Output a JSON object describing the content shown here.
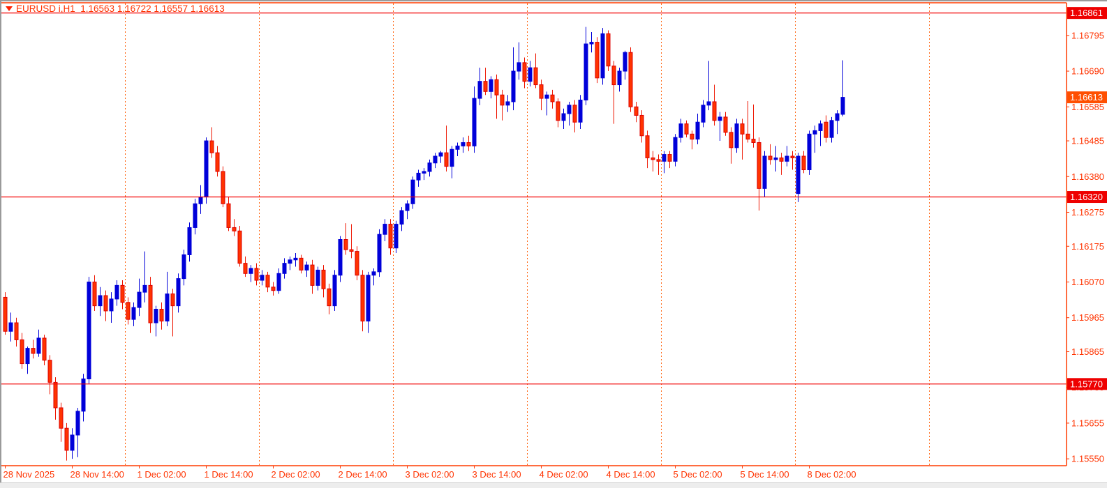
{
  "header": {
    "title_text": "EURUSD i,H1  1.16563 1.16722 1.16557 1.16613"
  },
  "chart_data": {
    "type": "candlestick",
    "symbol": "EURUSD i",
    "timeframe": "H1",
    "title": "EURUSD i,H1",
    "last_bar": {
      "open": 1.16563,
      "high": 1.16722,
      "low": 1.16557,
      "close": 1.16613
    },
    "bid_price": 1.16613,
    "bid_label": "1.16613",
    "ylim": [
      1.15535,
      1.16891
    ],
    "grid": false,
    "legend_position": "none",
    "colors": {
      "background": "#ffffff",
      "axis": "#ff3b00",
      "text": "#ff3300",
      "bull": "#0000d9",
      "bear_fill": "#ff3300",
      "bear_border": "#dd0000",
      "line": "#f20000",
      "line_label_bg": "#ee0000",
      "bid_label_bg": "#ff4f00",
      "separator": "#ff5a00"
    },
    "horizontal_lines": [
      {
        "price": 1.16861,
        "label": "1.16861"
      },
      {
        "price": 1.1632,
        "label": "1.16320"
      },
      {
        "price": 1.1577,
        "label": "1.15770"
      }
    ],
    "price_ticks": [
      {
        "price": 1.16795,
        "label": "1.16795"
      },
      {
        "price": 1.1669,
        "label": "1.16690"
      },
      {
        "price": 1.16585,
        "label": "1.16585"
      },
      {
        "price": 1.16485,
        "label": "1.16485"
      },
      {
        "price": 1.1638,
        "label": "1.16380"
      },
      {
        "price": 1.16275,
        "label": "1.16275"
      },
      {
        "price": 1.16175,
        "label": "1.16175"
      },
      {
        "price": 1.1607,
        "label": "1.16070"
      },
      {
        "price": 1.15965,
        "label": "1.15965"
      },
      {
        "price": 1.15865,
        "label": "1.15865"
      },
      {
        "price": 1.1576,
        "label": "1.15760"
      },
      {
        "price": 1.15655,
        "label": "1.15655"
      },
      {
        "price": 1.1555,
        "label": "1.15550"
      }
    ],
    "time_ticks": [
      {
        "bar": 0,
        "label": "28 Nov 2025"
      },
      {
        "bar": 12,
        "label": "28 Nov 14:00"
      },
      {
        "bar": 24,
        "label": "1 Dec 02:00"
      },
      {
        "bar": 36,
        "label": "1 Dec 14:00"
      },
      {
        "bar": 48,
        "label": "2 Dec 02:00"
      },
      {
        "bar": 60,
        "label": "2 Dec 14:00"
      },
      {
        "bar": 72,
        "label": "3 Dec 02:00"
      },
      {
        "bar": 84,
        "label": "3 Dec 14:00"
      },
      {
        "bar": 96,
        "label": "4 Dec 02:00"
      },
      {
        "bar": 108,
        "label": "4 Dec 14:00"
      },
      {
        "bar": 120,
        "label": "5 Dec 02:00"
      },
      {
        "bar": 132,
        "label": "5 Dec 14:00"
      },
      {
        "bar": 144,
        "label": "8 Dec 02:00"
      }
    ],
    "day_separator_bars": [
      22,
      46,
      70,
      94,
      118,
      142,
      166
    ],
    "candles": [
      [
        1.16025,
        1.1604,
        1.15915,
        1.15925
      ],
      [
        1.15925,
        1.1598,
        1.15895,
        1.1595
      ],
      [
        1.1595,
        1.15965,
        1.1588,
        1.159
      ],
      [
        1.159,
        1.1592,
        1.15815,
        1.1583
      ],
      [
        1.1583,
        1.1588,
        1.158,
        1.15875
      ],
      [
        1.15875,
        1.159,
        1.15845,
        1.1586
      ],
      [
        1.1586,
        1.1593,
        1.1585,
        1.15905
      ],
      [
        1.15905,
        1.15915,
        1.15825,
        1.1584
      ],
      [
        1.1584,
        1.15855,
        1.1574,
        1.15775
      ],
      [
        1.15775,
        1.1579,
        1.15665,
        1.157
      ],
      [
        1.157,
        1.15715,
        1.156,
        1.1564
      ],
      [
        1.1564,
        1.15655,
        1.15545,
        1.15575
      ],
      [
        1.15575,
        1.1564,
        1.1555,
        1.1562
      ],
      [
        1.1562,
        1.157,
        1.15555,
        1.1569
      ],
      [
        1.1569,
        1.158,
        1.1566,
        1.15785
      ],
      [
        1.15785,
        1.16085,
        1.1577,
        1.1607
      ],
      [
        1.1607,
        1.1609,
        1.15985,
        1.16
      ],
      [
        1.16,
        1.16055,
        1.1597,
        1.1603
      ],
      [
        1.1603,
        1.16045,
        1.15955,
        1.15985
      ],
      [
        1.15985,
        1.1604,
        1.1595,
        1.1602
      ],
      [
        1.1602,
        1.16075,
        1.16,
        1.1606
      ],
      [
        1.1606,
        1.16075,
        1.1599,
        1.1601
      ],
      [
        1.1601,
        1.16025,
        1.15945,
        1.1596
      ],
      [
        1.1596,
        1.1601,
        1.1594,
        1.15995
      ],
      [
        1.15995,
        1.1608,
        1.1597,
        1.1604
      ],
      [
        1.1604,
        1.1616,
        1.1601,
        1.1606
      ],
      [
        1.1606,
        1.16085,
        1.1592,
        1.1595
      ],
      [
        1.1595,
        1.16,
        1.1591,
        1.1599
      ],
      [
        1.1599,
        1.1601,
        1.1593,
        1.15955
      ],
      [
        1.15955,
        1.161,
        1.1594,
        1.16035
      ],
      [
        1.16035,
        1.1605,
        1.1591,
        1.16
      ],
      [
        1.16,
        1.16095,
        1.1598,
        1.1608
      ],
      [
        1.1608,
        1.16165,
        1.1606,
        1.1615
      ],
      [
        1.1615,
        1.16245,
        1.1613,
        1.1623
      ],
      [
        1.1623,
        1.16315,
        1.1621,
        1.163
      ],
      [
        1.163,
        1.16355,
        1.1627,
        1.1632
      ],
      [
        1.1632,
        1.16495,
        1.163,
        1.16485
      ],
      [
        1.16485,
        1.16525,
        1.16435,
        1.1645
      ],
      [
        1.1645,
        1.1647,
        1.1638,
        1.16395
      ],
      [
        1.16395,
        1.1641,
        1.1629,
        1.163
      ],
      [
        1.163,
        1.1632,
        1.1622,
        1.1623
      ],
      [
        1.1623,
        1.16255,
        1.16205,
        1.1622
      ],
      [
        1.1622,
        1.16235,
        1.16115,
        1.16125
      ],
      [
        1.16125,
        1.16145,
        1.16085,
        1.16095
      ],
      [
        1.16095,
        1.1612,
        1.1607,
        1.1611
      ],
      [
        1.1611,
        1.16125,
        1.1606,
        1.16075
      ],
      [
        1.16075,
        1.16105,
        1.1606,
        1.1609
      ],
      [
        1.1609,
        1.161,
        1.1604,
        1.16055
      ],
      [
        1.16055,
        1.1607,
        1.1603,
        1.16045
      ],
      [
        1.16045,
        1.1611,
        1.16035,
        1.16095
      ],
      [
        1.16095,
        1.1614,
        1.1608,
        1.16125
      ],
      [
        1.16125,
        1.16145,
        1.16105,
        1.16135
      ],
      [
        1.16135,
        1.16155,
        1.16115,
        1.1614
      ],
      [
        1.1614,
        1.1615,
        1.16095,
        1.16105
      ],
      [
        1.16105,
        1.1613,
        1.16085,
        1.1612
      ],
      [
        1.1612,
        1.16135,
        1.16035,
        1.1606
      ],
      [
        1.1606,
        1.16115,
        1.16045,
        1.16105
      ],
      [
        1.16105,
        1.1612,
        1.16025,
        1.1605
      ],
      [
        1.1605,
        1.16065,
        1.15975,
        1.16
      ],
      [
        1.16,
        1.16105,
        1.15985,
        1.1609
      ],
      [
        1.1609,
        1.16205,
        1.1607,
        1.16195
      ],
      [
        1.16195,
        1.16243,
        1.1615,
        1.16165
      ],
      [
        1.16165,
        1.1624,
        1.1614,
        1.1616
      ],
      [
        1.1616,
        1.16175,
        1.16075,
        1.1609
      ],
      [
        1.1609,
        1.16105,
        1.15925,
        1.15955
      ],
      [
        1.15955,
        1.161,
        1.1592,
        1.1609
      ],
      [
        1.1609,
        1.1611,
        1.1606,
        1.161
      ],
      [
        1.161,
        1.16225,
        1.16085,
        1.1621
      ],
      [
        1.1621,
        1.16255,
        1.1619,
        1.1624
      ],
      [
        1.1624,
        1.16255,
        1.1615,
        1.1617
      ],
      [
        1.1617,
        1.1625,
        1.16155,
        1.1624
      ],
      [
        1.1624,
        1.1629,
        1.1622,
        1.1628
      ],
      [
        1.1628,
        1.1631,
        1.16255,
        1.163
      ],
      [
        1.163,
        1.1638,
        1.16285,
        1.1637
      ],
      [
        1.1637,
        1.164,
        1.1635,
        1.1639
      ],
      [
        1.1639,
        1.16405,
        1.1637,
        1.16395
      ],
      [
        1.16395,
        1.1643,
        1.1638,
        1.1642
      ],
      [
        1.1642,
        1.1645,
        1.16405,
        1.1644
      ],
      [
        1.1644,
        1.16455,
        1.1642,
        1.1645
      ],
      [
        1.1645,
        1.1653,
        1.16395,
        1.1641
      ],
      [
        1.1641,
        1.1647,
        1.16375,
        1.1646
      ],
      [
        1.1646,
        1.1648,
        1.1644,
        1.1647
      ],
      [
        1.1647,
        1.16495,
        1.1645,
        1.1648
      ],
      [
        1.1648,
        1.165,
        1.16455,
        1.1647
      ],
      [
        1.1647,
        1.16645,
        1.1645,
        1.1661
      ],
      [
        1.1661,
        1.167,
        1.1659,
        1.1666
      ],
      [
        1.1666,
        1.167,
        1.1662,
        1.1663
      ],
      [
        1.1663,
        1.16675,
        1.1661,
        1.16665
      ],
      [
        1.16665,
        1.1668,
        1.1655,
        1.1662
      ],
      [
        1.1662,
        1.16635,
        1.16545,
        1.1659
      ],
      [
        1.1659,
        1.1662,
        1.1657,
        1.166
      ],
      [
        1.166,
        1.1676,
        1.16575,
        1.1669
      ],
      [
        1.1669,
        1.16775,
        1.16665,
        1.16715
      ],
      [
        1.16715,
        1.1673,
        1.1664,
        1.1666
      ],
      [
        1.1666,
        1.1672,
        1.16645,
        1.167
      ],
      [
        1.167,
        1.16742,
        1.1664,
        1.1665
      ],
      [
        1.1665,
        1.16665,
        1.16575,
        1.1661
      ],
      [
        1.1661,
        1.1663,
        1.1656,
        1.1662
      ],
      [
        1.1662,
        1.16635,
        1.1658,
        1.166
      ],
      [
        1.166,
        1.1661,
        1.16525,
        1.16545
      ],
      [
        1.16545,
        1.1658,
        1.1652,
        1.16565
      ],
      [
        1.16565,
        1.166,
        1.1653,
        1.1659
      ],
      [
        1.1659,
        1.16605,
        1.1651,
        1.1654
      ],
      [
        1.1654,
        1.1662,
        1.1652,
        1.16605
      ],
      [
        1.16605,
        1.1682,
        1.1659,
        1.1677
      ],
      [
        1.1677,
        1.16805,
        1.16745,
        1.16775
      ],
      [
        1.16775,
        1.1679,
        1.16655,
        1.1667
      ],
      [
        1.1667,
        1.16817,
        1.1665,
        1.168
      ],
      [
        1.168,
        1.1681,
        1.1669,
        1.16705
      ],
      [
        1.16705,
        1.1672,
        1.16535,
        1.1665
      ],
      [
        1.1665,
        1.167,
        1.1663,
        1.1669
      ],
      [
        1.1669,
        1.1675,
        1.16665,
        1.16745
      ],
      [
        1.16745,
        1.1676,
        1.1657,
        1.16585
      ],
      [
        1.16585,
        1.166,
        1.1654,
        1.1656
      ],
      [
        1.1656,
        1.16575,
        1.1648,
        1.165
      ],
      [
        1.165,
        1.16515,
        1.16405,
        1.16435
      ],
      [
        1.16435,
        1.16455,
        1.16395,
        1.1643
      ],
      [
        1.1643,
        1.16445,
        1.16385,
        1.16425
      ],
      [
        1.16425,
        1.16455,
        1.1639,
        1.16445
      ],
      [
        1.16445,
        1.16455,
        1.16405,
        1.16425
      ],
      [
        1.16425,
        1.16505,
        1.1641,
        1.16495
      ],
      [
        1.16495,
        1.1655,
        1.1648,
        1.16535
      ],
      [
        1.16535,
        1.16545,
        1.16495,
        1.16505
      ],
      [
        1.16505,
        1.16515,
        1.1646,
        1.1649
      ],
      [
        1.1649,
        1.16565,
        1.16475,
        1.1654
      ],
      [
        1.1654,
        1.16605,
        1.16525,
        1.1659
      ],
      [
        1.1659,
        1.1672,
        1.16575,
        1.166
      ],
      [
        1.166,
        1.1665,
        1.1653,
        1.16545
      ],
      [
        1.16545,
        1.1657,
        1.16485,
        1.16555
      ],
      [
        1.16555,
        1.1657,
        1.165,
        1.1651
      ],
      [
        1.1651,
        1.16525,
        1.16418,
        1.16465
      ],
      [
        1.16465,
        1.1655,
        1.1645,
        1.16535
      ],
      [
        1.16535,
        1.1655,
        1.1643,
        1.16505
      ],
      [
        1.16505,
        1.16602,
        1.1648,
        1.1649
      ],
      [
        1.1649,
        1.16592,
        1.16465,
        1.1648
      ],
      [
        1.1648,
        1.16495,
        1.1628,
        1.16345
      ],
      [
        1.16345,
        1.16455,
        1.1632,
        1.1644
      ],
      [
        1.1644,
        1.16475,
        1.16415,
        1.1643
      ],
      [
        1.1643,
        1.1647,
        1.16395,
        1.16435
      ],
      [
        1.16435,
        1.1645,
        1.16385,
        1.16425
      ],
      [
        1.16425,
        1.1647,
        1.1641,
        1.1644
      ],
      [
        1.1644,
        1.16455,
        1.164,
        1.16435
      ],
      [
        1.1633,
        1.1645,
        1.16305,
        1.1644
      ],
      [
        1.1644,
        1.16455,
        1.1639,
        1.164
      ],
      [
        1.164,
        1.16515,
        1.16385,
        1.16505
      ],
      [
        1.16505,
        1.1653,
        1.1645,
        1.16515
      ],
      [
        1.16515,
        1.16545,
        1.1647,
        1.16535
      ],
      [
        1.1654,
        1.1656,
        1.1648,
        1.16495
      ],
      [
        1.16495,
        1.16555,
        1.1648,
        1.16545
      ],
      [
        1.16545,
        1.16575,
        1.16505,
        1.16565
      ],
      [
        1.16563,
        1.16722,
        1.16557,
        1.16613
      ]
    ]
  }
}
